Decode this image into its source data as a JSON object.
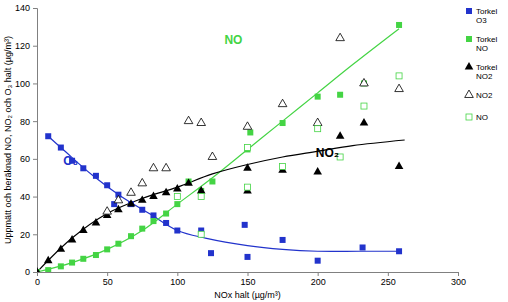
{
  "chart_data": {
    "type": "scatter",
    "x_label": "NOx halt (µg/m³)",
    "y_label": "Uppmätt och beräknad NO, NO₂ och O₃ halt (µg/m³)",
    "xlim": [
      0,
      300
    ],
    "xticks": [
      0,
      50,
      100,
      150,
      200,
      250,
      300
    ],
    "ylim": [
      0,
      140
    ],
    "yticks": [
      0,
      20,
      40,
      60,
      80,
      100,
      120,
      140
    ],
    "grid": false,
    "legend": "right",
    "series": [
      {
        "name": "Torkel O3",
        "type": "scatter",
        "marker": "square",
        "color": "#2233cc",
        "x": [
          8,
          17,
          25,
          33,
          42,
          50,
          55,
          58,
          67,
          75,
          83,
          92,
          100,
          117,
          124,
          148,
          150,
          175,
          200,
          232,
          258
        ],
        "values": [
          72,
          66,
          59,
          55,
          51,
          46,
          36,
          41,
          36,
          33,
          30,
          26,
          22,
          22,
          10,
          25,
          8,
          17,
          6,
          13,
          11
        ]
      },
      {
        "name": "Torkel NO",
        "type": "scatter",
        "marker": "square",
        "color": "#44d444",
        "x": [
          0,
          8,
          17,
          25,
          33,
          42,
          50,
          58,
          67,
          75,
          83,
          92,
          100,
          108,
          117,
          125,
          150,
          152,
          175,
          200,
          216,
          233,
          258
        ],
        "values": [
          0,
          1,
          3,
          5,
          7,
          9,
          12,
          15,
          19,
          23,
          27,
          31,
          36,
          48,
          43,
          48,
          65,
          74,
          79,
          93,
          94,
          100,
          131
        ]
      },
      {
        "name": "Torkel NO2",
        "type": "scatter",
        "marker": "triangle",
        "color": "#000000",
        "x": [
          0,
          8,
          17,
          25,
          33,
          42,
          50,
          58,
          67,
          75,
          83,
          92,
          100,
          108,
          117,
          150,
          150,
          175,
          200,
          216,
          233,
          258
        ],
        "values": [
          0,
          6,
          12,
          17,
          22,
          26,
          30,
          33,
          36,
          38,
          40,
          42,
          44,
          47,
          43,
          43,
          55,
          54,
          53,
          72,
          79,
          56
        ]
      },
      {
        "name": "NO2",
        "type": "scatter",
        "marker": "triangle-open",
        "color": "#000000",
        "x": [
          50,
          58,
          67,
          75,
          83,
          92,
          108,
          117,
          125,
          150,
          175,
          200,
          216,
          233,
          258
        ],
        "values": [
          32,
          38,
          42,
          47,
          55,
          55,
          80,
          79,
          61,
          77,
          89,
          79,
          124,
          100,
          97
        ]
      },
      {
        "name": "NO",
        "type": "scatter",
        "marker": "square-open",
        "color": "#44d444",
        "x": [
          100,
          117,
          117,
          150,
          150,
          175,
          200,
          216,
          233,
          258
        ],
        "values": [
          40,
          40,
          20,
          45,
          66,
          56,
          76,
          61,
          88,
          104
        ]
      },
      {
        "type": "line",
        "line_style": "solid",
        "color": "#2233cc",
        "x": [
          8,
          20,
          40,
          60,
          80,
          100,
          120,
          150,
          175,
          200,
          230,
          258
        ],
        "values": [
          72,
          64,
          51,
          40,
          31,
          22,
          18,
          14,
          12,
          11,
          11,
          11
        ]
      },
      {
        "type": "line",
        "line_style": "solid",
        "color": "#44d444",
        "x": [
          0,
          25,
          50,
          75,
          100,
          125,
          150,
          175,
          200,
          225,
          258
        ],
        "values": [
          0,
          5,
          12,
          22,
          36,
          50,
          65,
          80,
          95,
          110,
          129
        ]
      },
      {
        "type": "line",
        "line_style": "solid",
        "color": "#000000",
        "x": [
          0,
          25,
          50,
          75,
          100,
          125,
          150,
          175,
          200,
          225,
          262
        ],
        "values": [
          0,
          18,
          31,
          39,
          45,
          52,
          57,
          61,
          64,
          67,
          70
        ]
      }
    ],
    "annotations": [
      {
        "text": "NO",
        "x": 140,
        "y": 121,
        "color": "#44d444"
      },
      {
        "text": "NO₂",
        "x": 207,
        "y": 61,
        "color": "#000000"
      },
      {
        "text": "O₃",
        "x": 24,
        "y": 57,
        "color": "#2233cc"
      }
    ]
  }
}
